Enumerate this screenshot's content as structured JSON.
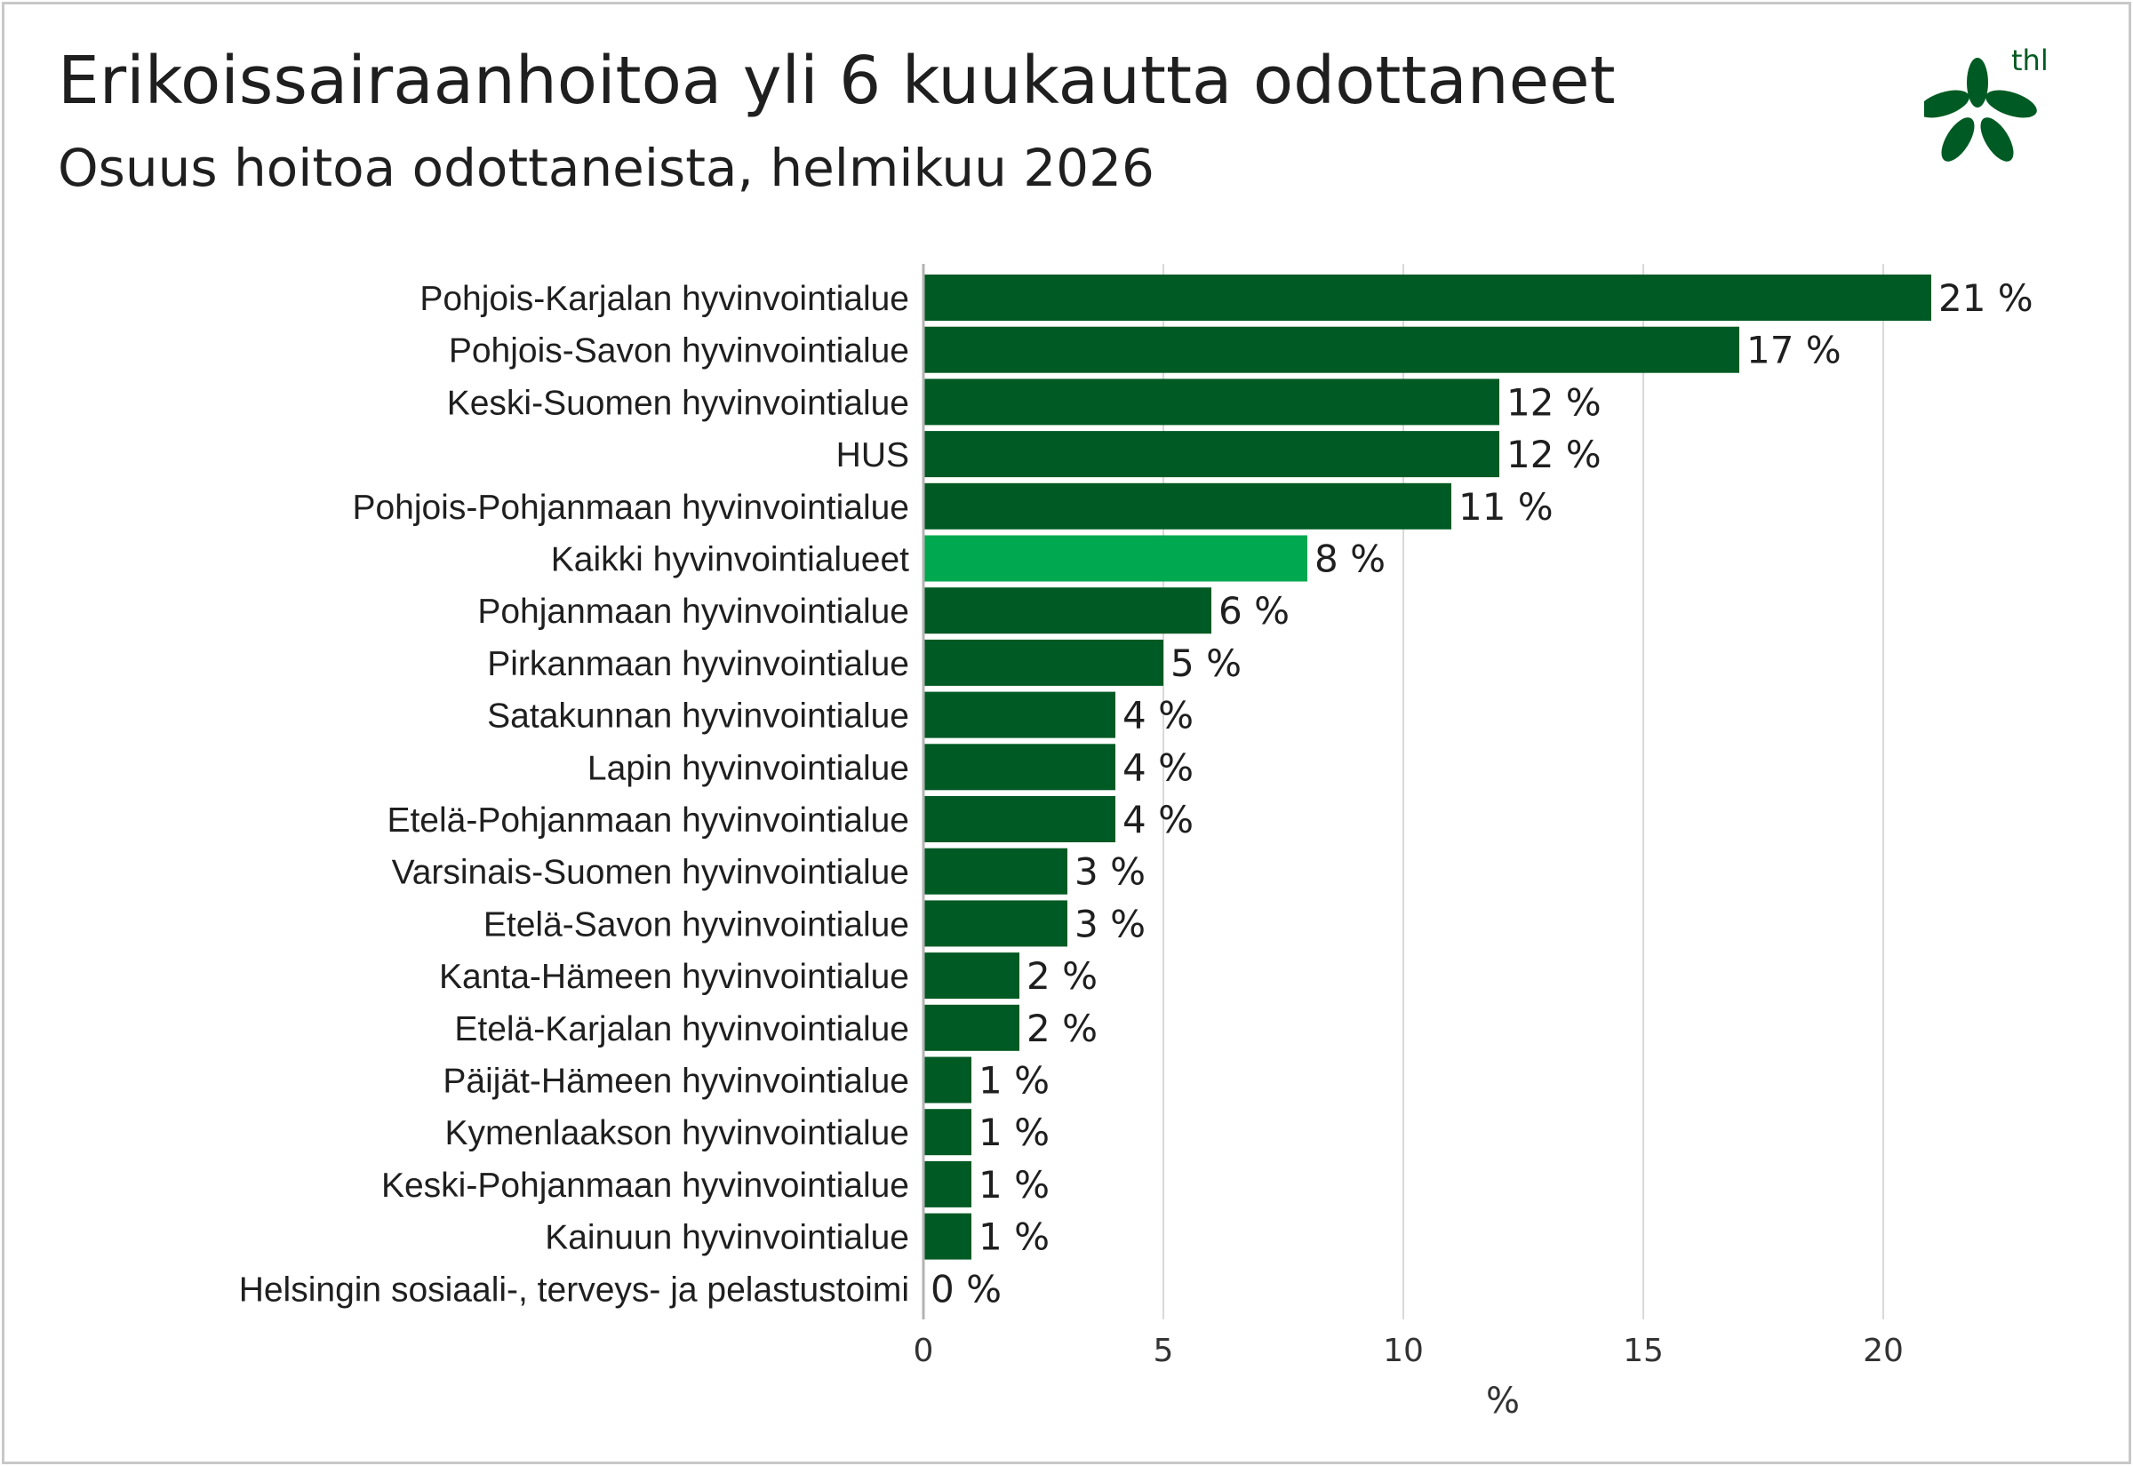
{
  "header": {
    "title": "Erikoissairaanhoitoa yli 6 kuukautta odottaneet",
    "subtitle": "Osuus hoitoa odottaneista, helmikuu 2026"
  },
  "logo": {
    "text": "thl",
    "icon": "thl-flower-logo-icon",
    "color": "#005a23"
  },
  "colors": {
    "bar": "#005a23",
    "highlight": "#00a84f",
    "grid": "#d9d9d9",
    "axis": "#b3b3b3"
  },
  "chart_data": {
    "type": "bar",
    "orientation": "horizontal",
    "categories": [
      "Pohjois-Karjalan hyvinvointialue",
      "Pohjois-Savon hyvinvointialue",
      "Keski-Suomen hyvinvointialue",
      "HUS",
      "Pohjois-Pohjanmaan hyvinvointialue",
      "Kaikki hyvinvointialueet",
      "Pohjanmaan hyvinvointialue",
      "Pirkanmaan hyvinvointialue",
      "Satakunnan hyvinvointialue",
      "Lapin hyvinvointialue",
      "Etelä-Pohjanmaan hyvinvointialue",
      "Varsinais-Suomen hyvinvointialue",
      "Etelä-Savon hyvinvointialue",
      "Kanta-Hämeen hyvinvointialue",
      "Etelä-Karjalan hyvinvointialue",
      "Päijät-Hämeen hyvinvointialue",
      "Kymenlaakson hyvinvointialue",
      "Keski-Pohjanmaan hyvinvointialue",
      "Kainuun hyvinvointialue",
      "Helsingin sosiaali-, terveys- ja pelastustoimi"
    ],
    "values": [
      21,
      17,
      12,
      12,
      11,
      8,
      6,
      5,
      4,
      4,
      4,
      3,
      3,
      2,
      2,
      1,
      1,
      1,
      1,
      0
    ],
    "value_labels": [
      "21 %",
      "17 %",
      "12 %",
      "12 %",
      "11 %",
      "8 %",
      "6 %",
      "5 %",
      "4 %",
      "4 %",
      "4 %",
      "3 %",
      "3 %",
      "2 %",
      "2 %",
      "1 %",
      "1 %",
      "1 %",
      "1 %",
      "0 %"
    ],
    "highlight_category": "Kaikki hyvinvointialueet",
    "xlabel": "%",
    "xlim": [
      0,
      22
    ],
    "xticks": [
      0,
      5,
      10,
      15,
      20
    ],
    "xtick_labels": [
      "0",
      "5",
      "10",
      "15",
      "20"
    ],
    "grid": true,
    "legend": "none"
  }
}
